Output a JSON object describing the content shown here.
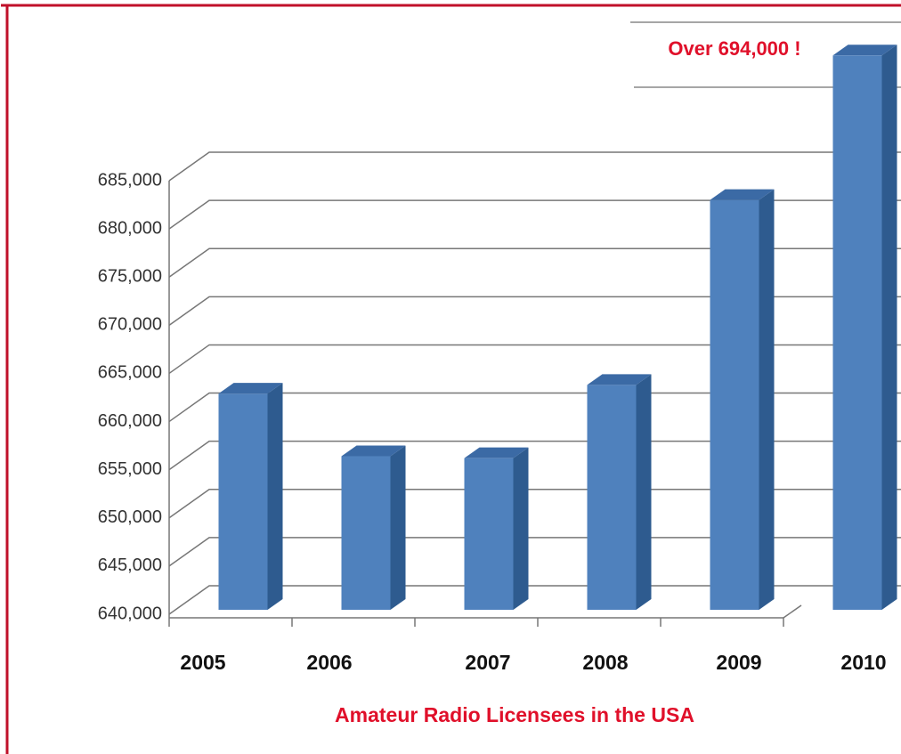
{
  "chart_data": {
    "type": "bar3d",
    "title": "Amateur Radio Licensees in the USA",
    "annotation": "Over 694,000 !",
    "categories": [
      "2005",
      "2006",
      "2007",
      "2008",
      "2009",
      "2010"
    ],
    "values": [
      662900,
      656400,
      656200,
      663800,
      683000,
      698000
    ],
    "color": "#4f81bd",
    "ylim": [
      640000,
      685000
    ],
    "yticks": [
      {
        "value": 640000,
        "label": "640,000"
      },
      {
        "value": 645000,
        "label": "645,000"
      },
      {
        "value": 650000,
        "label": "650,000"
      },
      {
        "value": 655000,
        "label": "655,000"
      },
      {
        "value": 660000,
        "label": "660,000"
      },
      {
        "value": 665000,
        "label": "665,000"
      },
      {
        "value": 670000,
        "label": "670,000"
      },
      {
        "value": 675000,
        "label": "675,000"
      },
      {
        "value": 680000,
        "label": "680,000"
      },
      {
        "value": 685000,
        "label": "685,000"
      }
    ],
    "grid": true
  }
}
